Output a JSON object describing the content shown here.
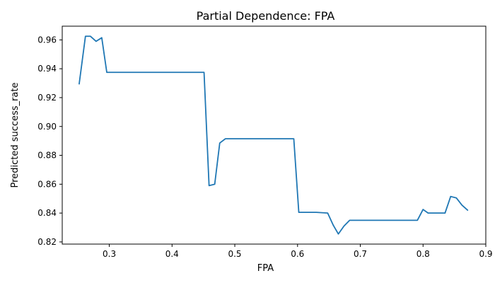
{
  "chart_data": {
    "type": "line",
    "title": "Partial Dependence: FPA",
    "xlabel": "FPA",
    "ylabel": "Predicted success_rate",
    "xlim": [
      0.225,
      0.9
    ],
    "ylim": [
      0.8185,
      0.9695
    ],
    "xticks": [
      0.3,
      0.4,
      0.5,
      0.6,
      0.7,
      0.8,
      0.9
    ],
    "yticks": [
      0.82,
      0.84,
      0.86,
      0.88,
      0.9,
      0.92,
      0.94,
      0.96
    ],
    "xtick_labels": [
      "0.3",
      "0.4",
      "0.5",
      "0.6",
      "0.7",
      "0.8",
      "0.9"
    ],
    "ytick_labels": [
      "0.82",
      "0.84",
      "0.86",
      "0.88",
      "0.90",
      "0.92",
      "0.94",
      "0.96"
    ],
    "grid": false,
    "series": [
      {
        "color": "#1f77b4",
        "x": [
          0.252,
          0.262,
          0.27,
          0.279,
          0.288,
          0.296,
          0.305,
          0.35,
          0.4,
          0.451,
          0.459,
          0.468,
          0.476,
          0.485,
          0.5,
          0.55,
          0.594,
          0.602,
          0.611,
          0.62,
          0.63,
          0.648,
          0.657,
          0.665,
          0.674,
          0.683,
          0.7,
          0.75,
          0.791,
          0.8,
          0.808,
          0.817,
          0.826,
          0.835,
          0.844,
          0.853,
          0.862,
          0.871
        ],
        "y": [
          0.9295,
          0.9625,
          0.9625,
          0.959,
          0.9615,
          0.9375,
          0.9375,
          0.9375,
          0.9375,
          0.9375,
          0.859,
          0.86,
          0.8885,
          0.8915,
          0.8915,
          0.8915,
          0.8915,
          0.8405,
          0.8405,
          0.8405,
          0.8405,
          0.84,
          0.8315,
          0.8255,
          0.831,
          0.835,
          0.835,
          0.835,
          0.835,
          0.8425,
          0.84,
          0.84,
          0.84,
          0.84,
          0.8515,
          0.8505,
          0.8455,
          0.842
        ]
      }
    ]
  }
}
